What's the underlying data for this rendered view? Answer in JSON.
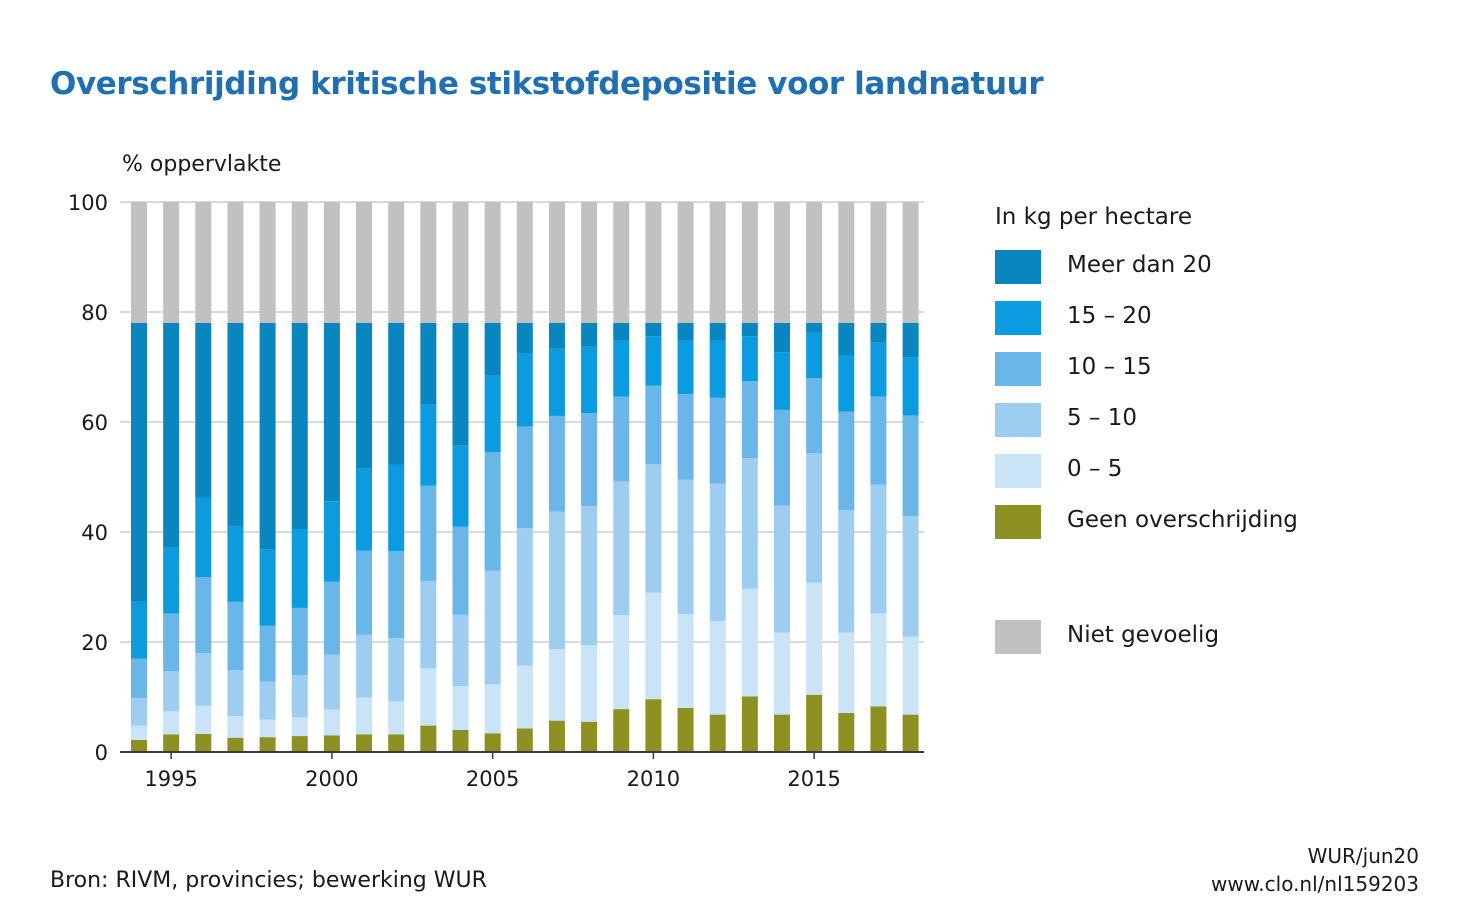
{
  "title": "Overschrijding kritische stikstofdepositie voor landnatuur",
  "source": "Bron: RIVM, provincies; bewerking WUR",
  "credit": [
    "WUR/jun20",
    "www.clo.nl/nl159203"
  ],
  "chart_data": {
    "type": "bar",
    "stacked": true,
    "ylabel": "% oppervlakte",
    "ylim": [
      0,
      100
    ],
    "yticks": [
      0,
      20,
      40,
      60,
      80,
      100
    ],
    "xtick_labels": [
      "1995",
      "2000",
      "2005",
      "2010",
      "2015"
    ],
    "grid": true,
    "legend_position": "right",
    "legend_title": "In kg per hectare",
    "categories": [
      "1994",
      "1995",
      "1996",
      "1997",
      "1998",
      "1999",
      "2000",
      "2001",
      "2002",
      "2003",
      "2004",
      "2005",
      "2006",
      "2007",
      "2008",
      "2009",
      "2010",
      "2011",
      "2012",
      "2013",
      "2014",
      "2015",
      "2016",
      "2017",
      "2018"
    ],
    "series": [
      {
        "name": "Geen overschrijding",
        "color": "#8c9121",
        "values": [
          2.2,
          3.2,
          3.3,
          2.6,
          2.7,
          2.9,
          3.0,
          3.2,
          3.2,
          4.8,
          4.0,
          3.4,
          4.3,
          5.7,
          5.5,
          7.8,
          9.6,
          8.0,
          6.8,
          10.1,
          6.8,
          10.4,
          7.1,
          8.3,
          6.8
        ]
      },
      {
        "name": "0 – 5",
        "color": "#c9e3f7",
        "values": [
          2.6,
          4.2,
          5.1,
          3.9,
          3.2,
          3.4,
          4.7,
          6.7,
          6.0,
          10.4,
          8.0,
          8.9,
          11.4,
          13.0,
          13.9,
          17.1,
          19.4,
          17.1,
          17.0,
          19.6,
          14.9,
          20.4,
          14.6,
          16.9,
          14.2
        ]
      },
      {
        "name": "5 – 10",
        "color": "#9dcdf1",
        "values": [
          5.0,
          7.3,
          9.6,
          8.4,
          6.9,
          7.7,
          10.0,
          11.4,
          11.5,
          15.9,
          13.0,
          20.7,
          25.0,
          25.0,
          25.3,
          24.3,
          23.3,
          24.4,
          25.0,
          23.7,
          23.1,
          23.5,
          22.3,
          23.4,
          21.9
        ]
      },
      {
        "name": "10 – 15",
        "color": "#69b6e9",
        "values": [
          7.2,
          10.5,
          13.8,
          12.4,
          10.2,
          12.2,
          13.3,
          15.3,
          15.8,
          17.3,
          16.0,
          21.5,
          18.5,
          17.4,
          16.9,
          15.4,
          14.3,
          15.6,
          15.6,
          14.0,
          17.4,
          13.7,
          17.9,
          16.0,
          18.3
        ]
      },
      {
        "name": "15 – 20",
        "color": "#0b9be0",
        "values": [
          10.3,
          12.0,
          14.4,
          13.8,
          13.9,
          14.2,
          14.6,
          14.9,
          15.7,
          14.8,
          14.8,
          13.9,
          13.2,
          12.2,
          12.1,
          10.2,
          9.0,
          9.7,
          10.4,
          8.2,
          10.5,
          8.2,
          10.2,
          9.8,
          10.6
        ]
      },
      {
        "name": "Meer dan 20",
        "color": "#0886c0",
        "values": [
          50.7,
          40.8,
          31.8,
          36.9,
          41.1,
          37.6,
          32.4,
          26.5,
          25.8,
          14.8,
          22.2,
          9.6,
          5.6,
          4.7,
          4.3,
          3.2,
          2.4,
          3.2,
          3.2,
          2.4,
          5.3,
          1.8,
          5.9,
          3.6,
          6.2
        ]
      },
      {
        "name": "Niet gevoelig",
        "color": "#c1c1c1",
        "values": [
          22,
          22,
          22,
          22,
          22,
          22,
          22,
          22,
          22,
          22,
          22,
          22,
          22,
          22,
          22,
          22,
          22,
          22,
          22,
          22,
          22,
          22,
          22,
          22,
          22
        ]
      }
    ],
    "legend_order": [
      "Meer dan 20",
      "15 – 20",
      "10 – 15",
      "5 – 10",
      "0 – 5",
      "Geen overschrijding",
      "Niet gevoelig"
    ]
  }
}
